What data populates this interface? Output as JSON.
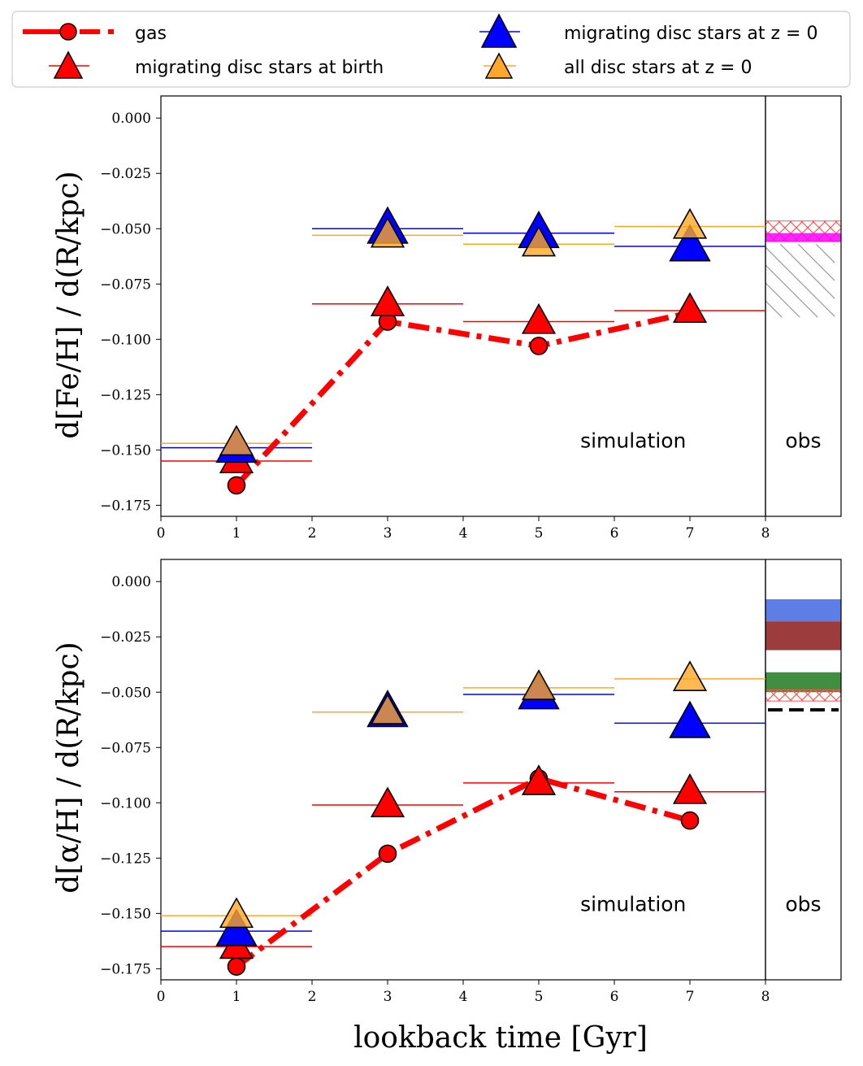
{
  "legend": [
    {
      "label": "gas",
      "kind": "line-circle",
      "color": "#ff0000"
    },
    {
      "label": "migrating disc stars at birth",
      "kind": "tri",
      "color": "#ff0000"
    },
    {
      "label": "migrating disc stars at z = 0",
      "kind": "tri",
      "color": "#0000ff"
    },
    {
      "label": "all disc stars at z = 0",
      "kind": "tri",
      "color": "#ffa726"
    }
  ],
  "x_axis": {
    "label": "lookback time  [Gyr]",
    "ticks": [
      "0",
      "1",
      "2",
      "3",
      "4",
      "5",
      "6",
      "7",
      "8"
    ]
  },
  "annotations": {
    "simulation": "simulation",
    "obs": "obs"
  },
  "chart_data": [
    {
      "type": "line",
      "id": "fe",
      "ylabel": "d[Fe/H] / d(R/kpc)",
      "xlim": [
        0,
        9
      ],
      "ylim": [
        -0.18,
        0.01
      ],
      "yticks": [
        "0.000",
        "−0.025",
        "−0.050",
        "−0.075",
        "−0.100",
        "−0.125",
        "−0.150",
        "−0.175"
      ],
      "x": [
        1,
        3,
        5,
        7
      ],
      "bins": [
        [
          0,
          2
        ],
        [
          2,
          4
        ],
        [
          4,
          6
        ],
        [
          6,
          8
        ]
      ],
      "series": [
        {
          "name": "gas",
          "values": [
            -0.166,
            -0.092,
            -0.103,
            -0.088
          ]
        },
        {
          "name": "migrating disc stars at birth",
          "values": [
            -0.155,
            -0.084,
            -0.092,
            -0.087
          ]
        },
        {
          "name": "migrating disc stars at z = 0",
          "values": [
            -0.149,
            -0.05,
            -0.052,
            -0.058
          ]
        },
        {
          "name": "all disc stars at z = 0",
          "values": [
            -0.147,
            -0.053,
            -0.057,
            -0.049
          ]
        }
      ],
      "obs_bands": [
        {
          "y0": -0.0465,
          "y1": -0.0555,
          "style": "hatch-cross",
          "color": "#ff6666"
        },
        {
          "y0": -0.052,
          "y1": -0.056,
          "style": "fill",
          "color": "#ff00ff"
        },
        {
          "y0": -0.057,
          "y1": -0.09,
          "style": "hatch-diag",
          "color": "#999999"
        }
      ],
      "obs_lines": []
    },
    {
      "type": "line",
      "id": "alpha",
      "ylabel": "d[α/H] / d(R/kpc)",
      "xlim": [
        0,
        9
      ],
      "ylim": [
        -0.18,
        0.01
      ],
      "yticks": [
        "0.000",
        "−0.025",
        "−0.050",
        "−0.075",
        "−0.100",
        "−0.125",
        "−0.150",
        "−0.175"
      ],
      "x": [
        1,
        3,
        5,
        7
      ],
      "bins": [
        [
          0,
          2
        ],
        [
          2,
          4
        ],
        [
          4,
          6
        ],
        [
          6,
          8
        ]
      ],
      "series": [
        {
          "name": "gas",
          "values": [
            -0.174,
            -0.123,
            -0.089,
            -0.108
          ]
        },
        {
          "name": "migrating disc stars at birth",
          "values": [
            -0.165,
            -0.101,
            -0.091,
            -0.095
          ]
        },
        {
          "name": "migrating disc stars at z = 0",
          "values": [
            -0.158,
            -0.059,
            -0.051,
            -0.064
          ]
        },
        {
          "name": "all disc stars at z = 0",
          "values": [
            -0.151,
            -0.059,
            -0.048,
            -0.044
          ]
        }
      ],
      "obs_bands": [
        {
          "y0": -0.008,
          "y1": -0.018,
          "style": "fill",
          "color": "#4169e1"
        },
        {
          "y0": -0.018,
          "y1": -0.031,
          "style": "fill",
          "color": "#8b1a1a"
        },
        {
          "y0": -0.041,
          "y1": -0.05,
          "style": "fill",
          "color": "#1e7b1e"
        },
        {
          "y0": -0.049,
          "y1": -0.054,
          "style": "hatch-cross",
          "color": "#ff6666"
        }
      ],
      "obs_lines": [
        {
          "y": -0.058,
          "style": "dashed",
          "color": "#000000"
        }
      ]
    }
  ]
}
